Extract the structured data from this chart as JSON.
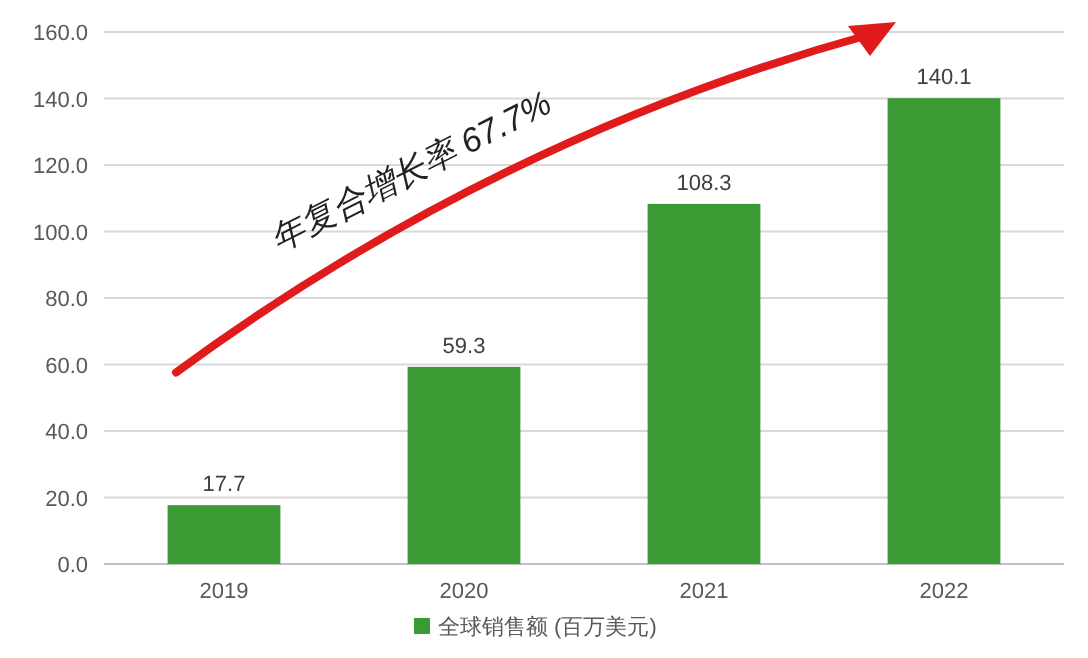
{
  "chart_data": {
    "type": "bar",
    "categories": [
      "2019",
      "2020",
      "2021",
      "2022"
    ],
    "series": [
      {
        "name": "全球销售额 (百万美元)",
        "color": "#3a9b35",
        "values": [
          17.7,
          59.3,
          108.3,
          140.1
        ]
      }
    ],
    "ylim": [
      0,
      160
    ],
    "yticks": [
      {
        "value": 0,
        "label": "0.0"
      },
      {
        "value": 20,
        "label": "20.0"
      },
      {
        "value": 40,
        "label": "40.0"
      },
      {
        "value": 60,
        "label": "60.0"
      },
      {
        "value": 80,
        "label": "80.0"
      },
      {
        "value": 100,
        "label": "100.0"
      },
      {
        "value": 120,
        "label": "120.0"
      },
      {
        "value": 140,
        "label": "140.0"
      },
      {
        "value": 160,
        "label": "160.0"
      }
    ],
    "grid": "y",
    "legend": "bottom",
    "data_labels": true,
    "annotations": [
      "年复合增长率 67.7%"
    ]
  }
}
